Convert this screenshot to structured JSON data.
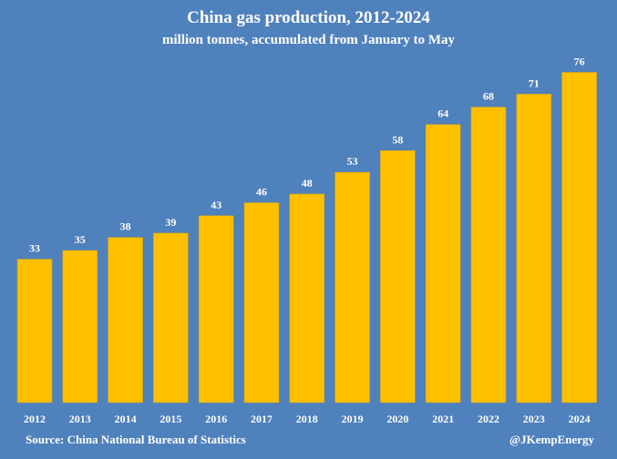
{
  "chart_data": {
    "type": "bar",
    "title": "China gas production, 2012-2024",
    "subtitle": "million tonnes, accumulated from January to May",
    "categories": [
      "2012",
      "2013",
      "2014",
      "2015",
      "2016",
      "2017",
      "2018",
      "2019",
      "2020",
      "2021",
      "2022",
      "2023",
      "2024"
    ],
    "values": [
      33,
      35,
      38,
      39,
      43,
      46,
      48,
      53,
      58,
      64,
      68,
      71,
      76
    ],
    "data_labels": true,
    "ylim": [
      0,
      80
    ],
    "grid": false,
    "bar_color": "#ffc000",
    "background_color": "#4f81bd",
    "source": "Source: China National Bureau of Statistics",
    "credit": "@JKempEnergy"
  }
}
